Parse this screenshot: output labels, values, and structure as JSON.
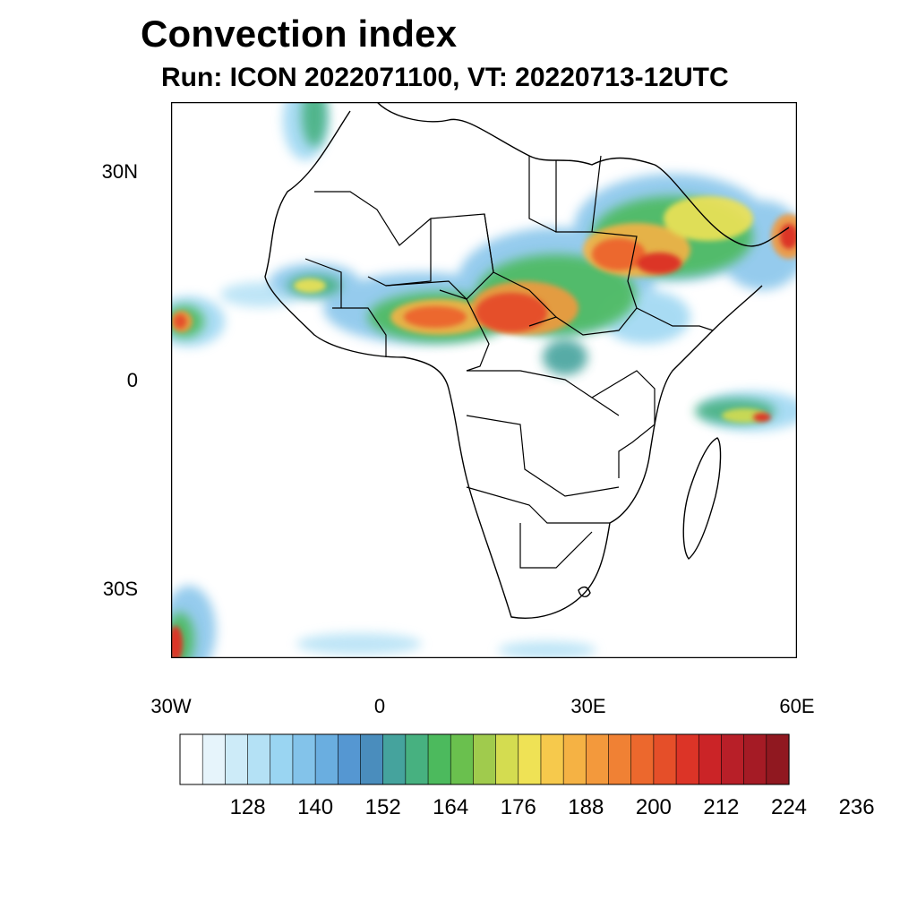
{
  "title": "Convection index",
  "subtitle": "Run: ICON 2022071100,  VT: 20220713-12UTC",
  "map": {
    "region": "Africa",
    "lat_labels": [
      "30N",
      "0",
      "30S"
    ],
    "lon_labels": [
      "30W",
      "0",
      "30E",
      "60E"
    ]
  },
  "colorbar": {
    "colors": [
      "#ffffff",
      "#e6f4fb",
      "#cdebf8",
      "#b4e1f5",
      "#9ad5f2",
      "#83c3ea",
      "#6aaee0",
      "#5597d2",
      "#4a8dbd",
      "#45a39d",
      "#47b180",
      "#4cba5d",
      "#6ac04e",
      "#a0cb4d",
      "#d4dc50",
      "#efe255",
      "#f6c94c",
      "#f5b244",
      "#f3993c",
      "#f08134",
      "#ec682d",
      "#e54f29",
      "#dc3427",
      "#cb2427",
      "#b81f28",
      "#a51b25",
      "#901820"
    ],
    "labels": [
      "128",
      "140",
      "152",
      "164",
      "176",
      "188",
      "200",
      "212",
      "224",
      "236"
    ]
  }
}
